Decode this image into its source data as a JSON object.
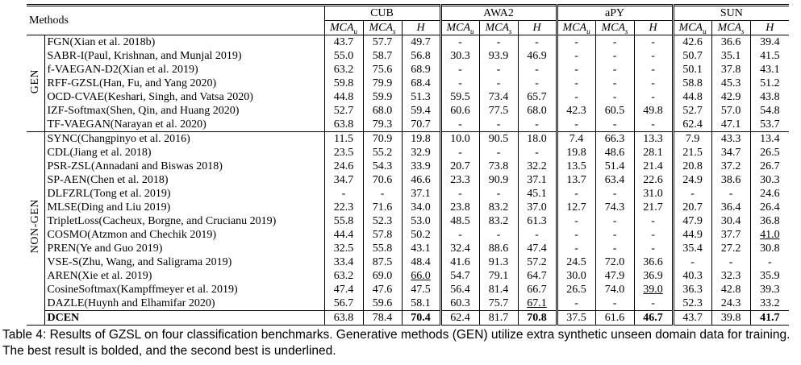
{
  "table": {
    "header": {
      "methods": "Methods",
      "datasets": [
        "CUB",
        "AWA2",
        "aPY",
        "SUN"
      ],
      "columns": [
        {
          "main": "MCA",
          "sub": "u"
        },
        {
          "main": "MCA",
          "sub": "s"
        },
        {
          "main": "H"
        },
        {
          "main": "MCA",
          "sub": "u"
        },
        {
          "main": "MCA",
          "sub": "s"
        },
        {
          "main": "H"
        },
        {
          "main": "MCA",
          "sub": "u"
        },
        {
          "main": "MCA",
          "sub": "s"
        },
        {
          "main": "H"
        },
        {
          "main": "MCA",
          "sub": "u"
        },
        {
          "main": "MCA",
          "sub": "s"
        },
        {
          "main": "H"
        }
      ]
    },
    "groups": [
      {
        "label": "GEN",
        "rows": [
          {
            "method": "FGN(Xian et al. 2018b)",
            "cells": [
              "43.7",
              "57.7",
              "49.7",
              "-",
              "-",
              "-",
              "-",
              "-",
              "-",
              "42.6",
              "36.6",
              "39.4"
            ]
          },
          {
            "method": "SABR-I(Paul, Krishnan, and Munjal 2019)",
            "cells": [
              "55.0",
              "58.7",
              "56.8",
              "30.3",
              "93.9",
              "46.9",
              "-",
              "-",
              "-",
              "50.7",
              "35.1",
              "41.5"
            ]
          },
          {
            "method": "f-VAEGAN-D2(Xian et al. 2019)",
            "cells": [
              "63.2",
              "75.6",
              "68.9",
              "-",
              "-",
              "-",
              "-",
              "-",
              "-",
              "50.1",
              "37.8",
              "43.1"
            ]
          },
          {
            "method": "RFF-GZSL(Han, Fu, and Yang 2020)",
            "cells": [
              "59.8",
              "79.9",
              "68.4",
              "-",
              "-",
              "-",
              "-",
              "-",
              "-",
              "58.8",
              "45.3",
              "51.2"
            ]
          },
          {
            "method": "OCD-CVAE(Keshari, Singh, and Vatsa 2020)",
            "cells": [
              "44.8",
              "59.9",
              "51.3",
              "59.5",
              "73.4",
              "65.7",
              "-",
              "-",
              "-",
              "44.8",
              "42.9",
              "43.8"
            ]
          },
          {
            "method": "IZF-Softmax(Shen, Qin, and Huang 2020)",
            "cells": [
              "52.7",
              "68.0",
              "59.4",
              "60.6",
              "77.5",
              "68.0",
              "42.3",
              "60.5",
              "49.8",
              "52.7",
              "57.0",
              "54.8"
            ]
          },
          {
            "method": "TF-VAEGAN(Narayan et al. 2020)",
            "cells": [
              "63.8",
              "79.3",
              "70.7",
              "-",
              "-",
              "-",
              "-",
              "-",
              "-",
              "62.4",
              "47.1",
              "53.7"
            ]
          }
        ]
      },
      {
        "label": "NON-GEN",
        "rows": [
          {
            "method": "SYNC(Changpinyo et al. 2016)",
            "cells": [
              "11.5",
              "70.9",
              "19.8",
              "10.0",
              "90.5",
              "18.0",
              "7.4",
              "66.3",
              "13.3",
              "7.9",
              "43.3",
              "13.4"
            ]
          },
          {
            "method": "CDL(Jiang et al. 2018)",
            "cells": [
              "23.5",
              "55.2",
              "32.9",
              "-",
              "-",
              "-",
              "19.8",
              "48.6",
              "28.1",
              "21.5",
              "34.7",
              "26.5"
            ]
          },
          {
            "method": "PSR-ZSL(Annadani and Biswas 2018)",
            "cells": [
              "24.6",
              "54.3",
              "33.9",
              "20.7",
              "73.8",
              "32.2",
              "13.5",
              "51.4",
              "21.4",
              "20.8",
              "37.2",
              "26.7"
            ]
          },
          {
            "method": "SP-AEN(Chen et al. 2018)",
            "cells": [
              "34.7",
              "70.6",
              "46.6",
              "23.3",
              "90.9",
              "37.1",
              "13.7",
              "63.4",
              "22.6",
              "24.9",
              "38.6",
              "30.3"
            ]
          },
          {
            "method": "DLFZRL(Tong et al. 2019)",
            "cells": [
              "-",
              "-",
              "37.1",
              "-",
              "-",
              "45.1",
              "-",
              "-",
              "31.0",
              "-",
              "-",
              "24.6"
            ]
          },
          {
            "method": "MLSE(Ding and Liu 2019)",
            "cells": [
              "22.3",
              "71.6",
              "34.0",
              "23.8",
              "83.2",
              "37.0",
              "12.7",
              "74.3",
              "21.7",
              "20.7",
              "36.4",
              "26.4"
            ]
          },
          {
            "method": "TripletLoss(Cacheux, Borgne, and Crucianu 2019)",
            "cells": [
              "55.8",
              "52.3",
              "53.0",
              "48.5",
              "83.2",
              "61.3",
              "-",
              "-",
              "-",
              "47.9",
              "30.4",
              "36.8"
            ]
          },
          {
            "method": "COSMO(Atzmon and Chechik 2019)",
            "cells": [
              "44.4",
              "57.8",
              "50.2",
              "-",
              "-",
              "-",
              "-",
              "-",
              "-",
              "44.9",
              "37.7",
              {
                "text": "41.0",
                "style": "underline"
              }
            ]
          },
          {
            "method": "PREN(Ye and Guo 2019)",
            "cells": [
              "32.5",
              "55.8",
              "43.1",
              "32.4",
              "88.6",
              "47.4",
              "-",
              "-",
              "-",
              "35.4",
              "27.2",
              "30.8"
            ]
          },
          {
            "method": "VSE-S(Zhu, Wang, and Saligrama 2019)",
            "cells": [
              "33.4",
              "87.5",
              "48.4",
              "41.6",
              "91.3",
              "57.2",
              "24.5",
              "72.0",
              "36.6",
              "-",
              "-",
              "-"
            ]
          },
          {
            "method": "AREN(Xie et al. 2019)",
            "cells": [
              "63.2",
              "69.0",
              {
                "text": "66.0",
                "style": "underline"
              },
              "54.7",
              "79.1",
              "64.7",
              "30.0",
              "47.9",
              "36.9",
              "40.3",
              "32.3",
              "35.9"
            ]
          },
          {
            "method": "CosineSoftmax(Kampffmeyer et al. 2019)",
            "cells": [
              "47.4",
              "47.6",
              "47.5",
              "56.4",
              "81.4",
              "66.7",
              "26.5",
              "74.0",
              {
                "text": "39.0",
                "style": "underline"
              },
              "36.3",
              "42.8",
              "39.3"
            ]
          },
          {
            "method": "DAZLE(Huynh and Elhamifar 2020)",
            "cells": [
              "56.7",
              "59.6",
              "58.1",
              "60.3",
              "75.7",
              {
                "text": "67.1",
                "style": "underline"
              },
              "-",
              "-",
              "-",
              "52.3",
              "24.3",
              "33.2"
            ]
          },
          {
            "method": "DCEN",
            "method_style": "bold",
            "separator": true,
            "cells": [
              "63.8",
              "78.4",
              {
                "text": "70.4",
                "style": "bold"
              },
              "62.4",
              "81.7",
              {
                "text": "70.8",
                "style": "bold"
              },
              "37.5",
              "61.6",
              {
                "text": "46.7",
                "style": "bold"
              },
              "43.7",
              "39.8",
              {
                "text": "41.7",
                "style": "bold"
              }
            ]
          }
        ]
      }
    ]
  },
  "caption": "Table 4: Results of GZSL on four classification benchmarks. Generative methods (GEN) utilize extra synthetic unseen domain data for training. The best result is bolded, and the second best is underlined."
}
